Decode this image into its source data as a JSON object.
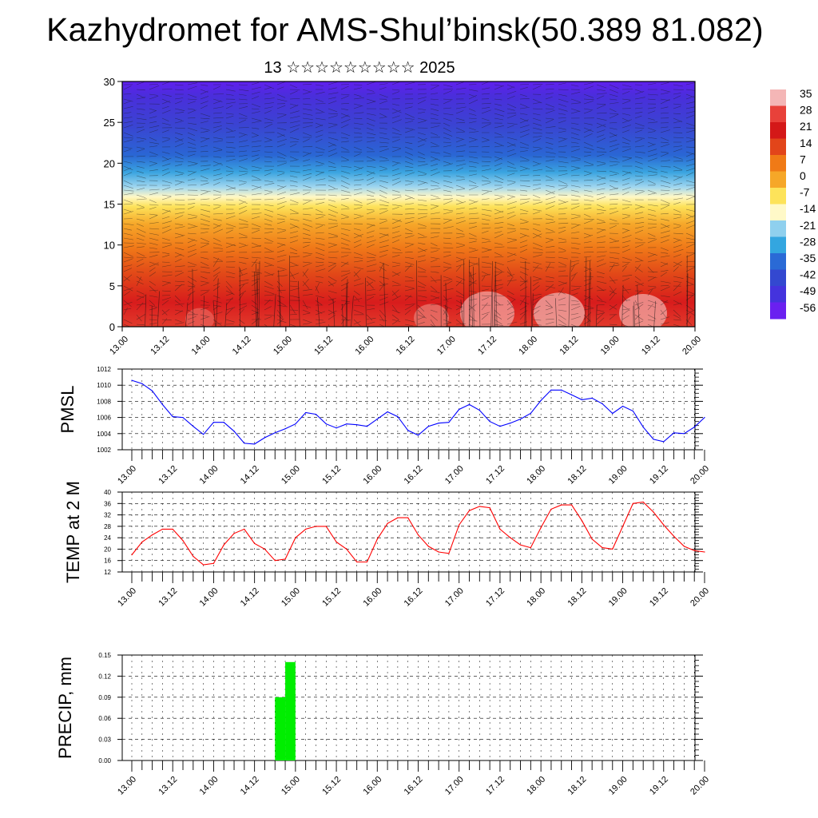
{
  "title": "Kazhydromet for AMS-Shul’binsk(50.389 81.082)",
  "subtitle": "13 ☆☆☆☆☆☆☆☆☆ 2025",
  "time_ticks": [
    "13.00",
    "13.12",
    "14.00",
    "14.12",
    "15.00",
    "15.12",
    "16.00",
    "16.12",
    "17.00",
    "17.12",
    "18.00",
    "18.12",
    "19.00",
    "19.12",
    "20.00"
  ],
  "colors": {
    "pmsl_line": "#0000ff",
    "temp_line": "#ff0000",
    "precip_bar": "#00ee00",
    "grid": "#000000"
  },
  "chart_data": [
    {
      "type": "heatmap",
      "title": "",
      "xlabel": "",
      "ylabel": "",
      "ylim": [
        0,
        30
      ],
      "yticks": [
        0,
        5,
        10,
        15,
        20,
        25,
        30
      ],
      "x": [
        "13.00",
        "13.12",
        "14.00",
        "14.12",
        "15.00",
        "15.12",
        "16.00",
        "16.12",
        "17.00",
        "17.12",
        "18.00",
        "18.12",
        "19.00",
        "19.12",
        "20.00"
      ],
      "colorbar_labels": [
        "35",
        "28",
        "21",
        "14",
        "7",
        "0",
        "-7",
        "-14",
        "-21",
        "-28",
        "-35",
        "-42",
        "-49",
        "-56"
      ],
      "colorbar_colors": [
        "#f4b6b6",
        "#e8413a",
        "#d41818",
        "#e2451a",
        "#f07a16",
        "#f6a728",
        "#fde35a",
        "#fff9c8",
        "#8fd0ee",
        "#33a6e0",
        "#2a6ad6",
        "#3348d0",
        "#4433dd",
        "#6a20f0"
      ]
    },
    {
      "type": "line",
      "ylabel": "PMSL",
      "ylim": [
        1002,
        1012
      ],
      "yticks": [
        1002,
        1004,
        1006,
        1008,
        1010,
        1012
      ],
      "x_hours": [
        0,
        3,
        6,
        9,
        12,
        15,
        18,
        21,
        24,
        27,
        30,
        33,
        36,
        39,
        42,
        45,
        48,
        51,
        54,
        57,
        60,
        63,
        66,
        69,
        72,
        75,
        78,
        81,
        84,
        87,
        90,
        93,
        96,
        99,
        102,
        105,
        108,
        111,
        114,
        117,
        120,
        123,
        126,
        129,
        132,
        135,
        138,
        141,
        144,
        147,
        150,
        153,
        156,
        159,
        162,
        165,
        168
      ],
      "values": [
        1010.6,
        1010.2,
        1009.3,
        1007.6,
        1006.1,
        1006.0,
        1004.9,
        1003.9,
        1005.4,
        1005.4,
        1004.3,
        1002.8,
        1002.7,
        1003.5,
        1004.1,
        1004.6,
        1005.2,
        1006.6,
        1006.4,
        1005.2,
        1004.7,
        1005.2,
        1005.1,
        1004.9,
        1005.8,
        1006.7,
        1006.1,
        1004.4,
        1003.8,
        1004.9,
        1005.3,
        1005.4,
        1007.0,
        1007.6,
        1006.9,
        1005.5,
        1004.9,
        1005.3,
        1005.8,
        1006.5,
        1008.1,
        1009.4,
        1009.4,
        1008.8,
        1008.2,
        1008.4,
        1007.7,
        1006.5,
        1007.4,
        1006.8,
        1004.8,
        1003.3,
        1003.0,
        1004.1,
        1004.0,
        1004.8,
        1006.0
      ],
      "series_color": "#0000ff"
    },
    {
      "type": "line",
      "ylabel": "TEMP at 2 M",
      "ylim": [
        12,
        40
      ],
      "yticks": [
        12,
        16,
        20,
        24,
        28,
        32,
        36,
        40
      ],
      "x_hours": [
        0,
        3,
        6,
        9,
        12,
        15,
        18,
        21,
        24,
        27,
        30,
        33,
        36,
        39,
        42,
        45,
        48,
        51,
        54,
        57,
        60,
        63,
        66,
        69,
        72,
        75,
        78,
        81,
        84,
        87,
        90,
        93,
        96,
        99,
        102,
        105,
        108,
        111,
        114,
        117,
        120,
        123,
        126,
        129,
        132,
        135,
        138,
        141,
        144,
        147,
        150,
        153,
        156,
        159,
        162,
        165,
        168
      ],
      "values": [
        18.0,
        22.5,
        25.0,
        27.0,
        27.0,
        23.0,
        17.5,
        14.5,
        15.0,
        21.5,
        25.5,
        27.0,
        22.0,
        20.0,
        16.0,
        16.5,
        24.0,
        27.0,
        28.0,
        28.0,
        22.5,
        20.0,
        15.5,
        15.5,
        23.5,
        29.0,
        31.0,
        31.0,
        25.0,
        21.0,
        19.0,
        18.5,
        28.5,
        33.5,
        35.0,
        34.5,
        27.0,
        24.0,
        21.5,
        20.5,
        27.5,
        34.0,
        35.5,
        35.5,
        30.0,
        23.5,
        20.5,
        20.0,
        28.0,
        36.0,
        36.5,
        33.0,
        28.5,
        24.5,
        21.0,
        19.5,
        19.0
      ],
      "series_color": "#ff0000"
    },
    {
      "type": "bar",
      "ylabel": "PRECIP, mm",
      "ylim": [
        0,
        0.15
      ],
      "yticks": [
        "0.00",
        "0.03",
        "0.06",
        "0.09",
        "0.12",
        "0.15"
      ],
      "x_hours": [
        42,
        45
      ],
      "values": [
        0.09,
        0.14
      ],
      "series_color": "#00ee00"
    }
  ]
}
